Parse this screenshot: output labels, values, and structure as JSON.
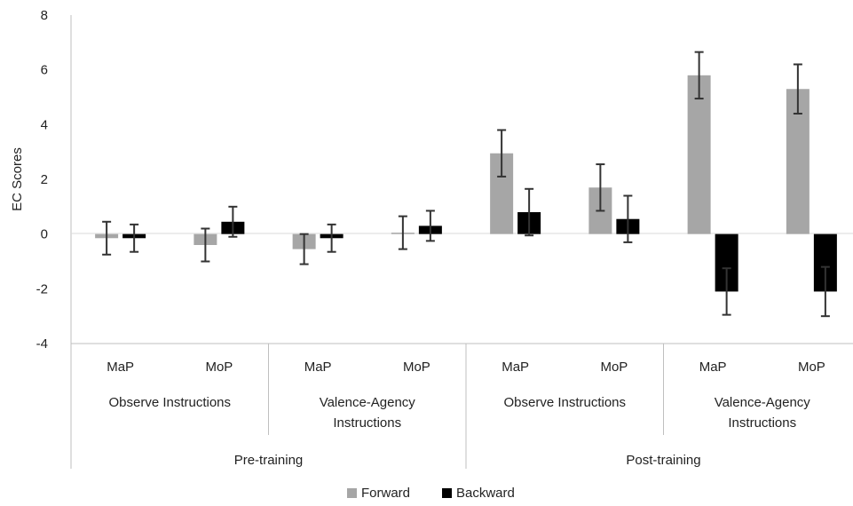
{
  "chart_data": {
    "type": "bar",
    "title": "",
    "xlabel": "",
    "ylabel": "EC Scores",
    "ylim": [
      -4,
      8
    ],
    "yticks": [
      "8",
      "6",
      "4",
      "2",
      "0",
      "-2",
      "-4"
    ],
    "grid": false,
    "legend_position": "bottom",
    "categories": [
      {
        "label": "MaP",
        "group": "Observe Instructions",
        "phase": "Pre-training"
      },
      {
        "label": "MoP",
        "group": "Observe Instructions",
        "phase": "Pre-training"
      },
      {
        "label": "MaP",
        "group": "Valence-Agency Instructions",
        "phase": "Pre-training"
      },
      {
        "label": "MoP",
        "group": "Valence-Agency Instructions",
        "phase": "Pre-training"
      },
      {
        "label": "MaP",
        "group": "Observe Instructions",
        "phase": "Post-training"
      },
      {
        "label": "MoP",
        "group": "Observe Instructions",
        "phase": "Post-training"
      },
      {
        "label": "MaP",
        "group": "Valence-Agency Instructions",
        "phase": "Post-training"
      },
      {
        "label": "MoP",
        "group": "Valence-Agency Instructions",
        "phase": "Post-training"
      }
    ],
    "groups": [
      {
        "lines": [
          "Observe Instructions"
        ]
      },
      {
        "lines": [
          "Valence-Agency",
          "Instructions"
        ]
      },
      {
        "lines": [
          "Observe Instructions"
        ]
      },
      {
        "lines": [
          "Valence-Agency",
          "Instructions"
        ]
      }
    ],
    "phases": [
      "Pre-training",
      "Post-training"
    ],
    "series": [
      {
        "name": "Forward",
        "color": "#a6a6a6",
        "values": [
          -0.15,
          -0.4,
          -0.55,
          0.05,
          2.95,
          1.7,
          5.8,
          5.3
        ],
        "error": [
          0.6,
          0.6,
          0.55,
          0.6,
          0.85,
          0.85,
          0.85,
          0.9
        ]
      },
      {
        "name": "Backward",
        "color": "#000000",
        "values": [
          -0.15,
          0.45,
          -0.15,
          0.3,
          0.8,
          0.55,
          -2.1,
          -2.1
        ],
        "error": [
          0.5,
          0.55,
          0.5,
          0.55,
          0.85,
          0.85,
          0.85,
          0.9
        ]
      }
    ]
  }
}
